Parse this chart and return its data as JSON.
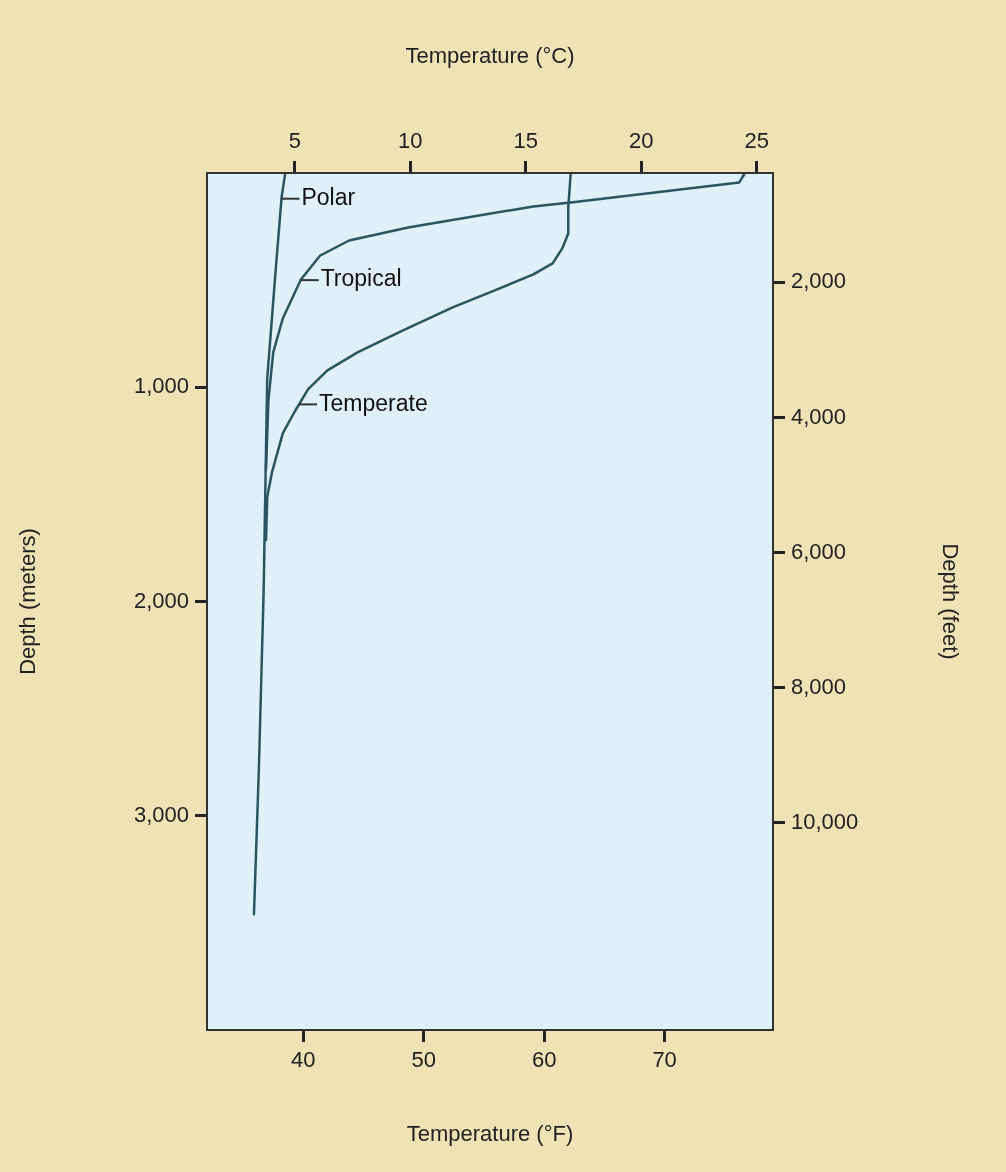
{
  "chart_data": {
    "type": "line",
    "xlabel": "Temperature (°F)",
    "x2label": "Temperature (°C)",
    "ylabel": "Depth (meters)",
    "y2label": "Depth (feet)",
    "xlim": [
      32,
      79
    ],
    "xticks": [
      40,
      50,
      60,
      70
    ],
    "x2lim": [
      1.2,
      25.7
    ],
    "x2ticks": [
      5,
      10,
      15,
      20,
      25
    ],
    "ylim": [
      4000,
      0
    ],
    "yticks": [
      {
        "value": 1000,
        "label": "1,000"
      },
      {
        "value": 2000,
        "label": "2,000"
      },
      {
        "value": 3000,
        "label": "3,000"
      }
    ],
    "y2lim": [
      13070,
      380
    ],
    "y2ticks": [
      {
        "value": 2000,
        "label": "2,000"
      },
      {
        "value": 4000,
        "label": "4,000"
      },
      {
        "value": 6000,
        "label": "6,000"
      },
      {
        "value": 8000,
        "label": "8,000"
      },
      {
        "value": 10000,
        "label": "10,000"
      }
    ],
    "grid": false,
    "legend": false,
    "marker": "none",
    "line_style": "solid",
    "series": [
      {
        "name": "Polar",
        "color": "#2a5560",
        "x": [
          38.5,
          38.2,
          37.7,
          37.0,
          36.7,
          36.3,
          35.9
        ],
        "values": [
          0,
          110,
          455,
          960,
          1960,
          2795,
          3460
        ]
      },
      {
        "name": "Tropical",
        "color": "#2a5560",
        "x": [
          76.6,
          76.2,
          62.2,
          59.1,
          48.7,
          43.8,
          41.4,
          39.8,
          38.3,
          37.5,
          37.1,
          36.9
        ],
        "values": [
          7,
          44,
          138,
          156,
          254,
          315,
          385,
          497,
          678,
          837,
          1061,
          1382
        ]
      },
      {
        "name": "Temperate",
        "color": "#2a5560",
        "x": [
          62.2,
          62.0,
          62.0,
          61.5,
          60.7,
          59.1,
          56.1,
          52.4,
          48.1,
          44.5,
          42.0,
          40.4,
          39.3,
          38.3,
          37.4,
          37.0,
          36.9
        ],
        "values": [
          2,
          161,
          282,
          352,
          422,
          473,
          543,
          627,
          739,
          837,
          921,
          1009,
          1112,
          1214,
          1396,
          1513,
          1713
        ]
      }
    ]
  }
}
